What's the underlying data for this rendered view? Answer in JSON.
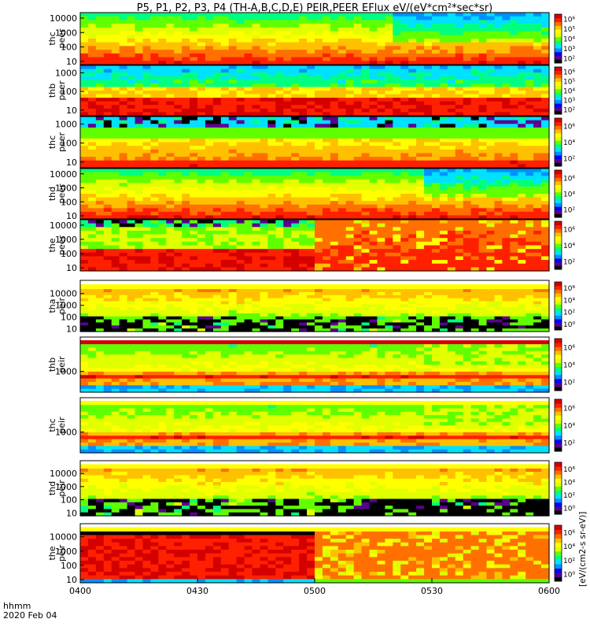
{
  "chart_data": {
    "type": "heatmap",
    "title": "P5, P1, P2, P3, P4 (TH-A,B,C,D,E) PEIR,PEER EFlux eV/(eV*cm²*sec*sr)",
    "time_axis": {
      "label_line1": "hhmm",
      "label_line2": "2020 Feb 04",
      "ticks": [
        "0400",
        "0430",
        "0500",
        "0530",
        "0600"
      ],
      "range": [
        "04:00",
        "06:00"
      ]
    },
    "colorbar": {
      "label": "[eV/(cm2-s sr-eV)]",
      "colormap": [
        "#000000",
        "#5a0090",
        "#0000ff",
        "#0090ff",
        "#00e0ff",
        "#00ff80",
        "#60ff00",
        "#e0ff00",
        "#ffff00",
        "#ffc000",
        "#ff7000",
        "#ff2000",
        "#d40000"
      ],
      "overlay_text": "eV/(cm2-s sr-eV)"
    },
    "panels": [
      {
        "probe": "thc",
        "species": "peer",
        "label1": "thc",
        "label2": "peer",
        "yscale": "log",
        "yticks": [
          "10",
          "100",
          "1000",
          "10000"
        ],
        "cbar_ticks": [
          "10²",
          "10³",
          "10⁴",
          "10⁵",
          "10⁶"
        ]
      },
      {
        "probe": "thb",
        "species": "peer",
        "label1": "thb",
        "label2": "peer",
        "yscale": "log",
        "yticks": [
          "10",
          "100",
          "1000"
        ],
        "cbar_ticks": [
          "10²",
          "10³",
          "10⁴",
          "10⁵",
          "10⁶"
        ]
      },
      {
        "probe": "thc",
        "species": "peer",
        "label1": "thc",
        "label2": "peer",
        "yscale": "log",
        "yticks": [
          "10",
          "100",
          "1000"
        ],
        "cbar_ticks": [
          "10²",
          "10⁴",
          "10⁶"
        ]
      },
      {
        "probe": "thd",
        "species": "peer",
        "label1": "thd",
        "label2": "peer",
        "yscale": "log",
        "yticks": [
          "10",
          "100",
          "1000",
          "10000"
        ],
        "cbar_ticks": [
          "10²",
          "10⁴",
          "10⁶"
        ]
      },
      {
        "probe": "the",
        "species": "peer",
        "label1": "the",
        "label2": "peer",
        "yscale": "log",
        "yticks": [
          "10",
          "100",
          "1000",
          "10000"
        ],
        "cbar_ticks": [
          "10²",
          "10⁴",
          "10⁶"
        ]
      },
      {
        "probe": "tha",
        "species": "peir",
        "label1": "tha",
        "label2": "peir",
        "yscale": "log",
        "yticks": [
          "10",
          "100",
          "1000",
          "10000"
        ],
        "cbar_ticks": [
          "10⁰",
          "10²",
          "10⁴",
          "10⁶"
        ]
      },
      {
        "probe": "thb",
        "species": "peir",
        "label1": "thb",
        "label2": "peir",
        "yscale": "log",
        "yticks": [
          "1000"
        ],
        "cbar_ticks": [
          "10²",
          "10⁴",
          "10⁶"
        ]
      },
      {
        "probe": "thc",
        "species": "peir",
        "label1": "thc",
        "label2": "peir",
        "yscale": "log",
        "yticks": [
          "1000"
        ],
        "cbar_ticks": [
          "10²",
          "10⁴",
          "10⁶"
        ]
      },
      {
        "probe": "thd",
        "species": "peir",
        "label1": "thd",
        "label2": "peir",
        "yscale": "log",
        "yticks": [
          "10",
          "100",
          "1000",
          "10000"
        ],
        "cbar_ticks": [
          "10⁰",
          "10²",
          "10⁴",
          "10⁶"
        ]
      },
      {
        "probe": "the",
        "species": "peir",
        "label1": "the",
        "label2": "peir",
        "yscale": "log",
        "yticks": [
          "10",
          "100",
          "1000",
          "10000"
        ],
        "cbar_ticks": [
          "10⁰",
          "10²",
          "10⁴",
          "10⁶"
        ]
      }
    ]
  }
}
